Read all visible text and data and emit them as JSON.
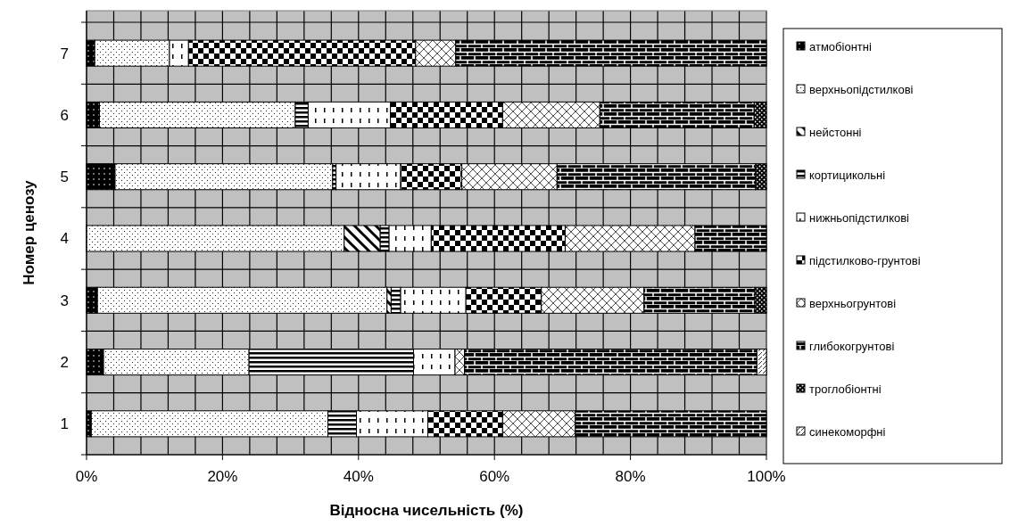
{
  "chart_data": {
    "type": "bar",
    "orientation": "horizontal",
    "stacked": true,
    "xlabel": "Відносна чисельність (%)",
    "ylabel": "Номер ценозу",
    "categories": [
      "7",
      "6",
      "5",
      "4",
      "3",
      "2",
      "1"
    ],
    "series": [
      {
        "name": "атмобіонтні",
        "color": "#000000",
        "values": [
          1.2,
          1.9,
          4.2,
          null,
          1.6,
          2.5,
          0.7
        ]
      },
      {
        "name": "верхньопідстилкові",
        "color": "#000000",
        "values": [
          11.0,
          28.8,
          32.0,
          37.9,
          42.6,
          21.4,
          34.8
        ]
      },
      {
        "name": "нейстонні",
        "color": "#000000",
        "values": [
          null,
          null,
          null,
          5.3,
          0.6,
          null,
          null
        ]
      },
      {
        "name": "кортицикольні",
        "color": "#000000",
        "values": [
          null,
          1.9,
          0.5,
          1.3,
          1.4,
          24.2,
          4.2
        ]
      },
      {
        "name": "нижньопідстилкові",
        "color": "#000000",
        "values": [
          2.8,
          12.1,
          9.5,
          6.2,
          9.6,
          6.1,
          10.5
        ]
      },
      {
        "name": "підстилково-грунтові",
        "color": "#000000",
        "values": [
          33.4,
          16.5,
          9.0,
          19.7,
          11.1,
          null,
          11.0
        ]
      },
      {
        "name": "верхньогрунтові",
        "color": "#000000",
        "values": [
          5.9,
          14.3,
          14.0,
          19.1,
          15.1,
          1.4,
          10.7
        ]
      },
      {
        "name": "глибокогрунтові",
        "color": "#000000",
        "values": [
          45.7,
          22.7,
          29.2,
          10.5,
          16.3,
          43.0,
          28.1
        ]
      },
      {
        "name": "троглобіонтні",
        "color": "#000000",
        "values": [
          null,
          1.8,
          1.6,
          null,
          1.7,
          null,
          null
        ]
      },
      {
        "name": "синекоморфні",
        "color": "#000000",
        "values": [
          null,
          null,
          null,
          null,
          null,
          1.4,
          null
        ]
      }
    ],
    "xlim": [
      0,
      100
    ],
    "xticks": [
      {
        "value": 0,
        "label": "0%"
      },
      {
        "value": 4,
        "label": null
      },
      {
        "value": 8,
        "label": null
      },
      {
        "value": 12,
        "label": null
      },
      {
        "value": 16,
        "label": null
      },
      {
        "value": 20,
        "label": "20%"
      },
      {
        "value": 24,
        "label": null
      },
      {
        "value": 28,
        "label": null
      },
      {
        "value": 32,
        "label": null
      },
      {
        "value": 36,
        "label": null
      },
      {
        "value": 40,
        "label": "40%"
      },
      {
        "value": 44,
        "label": null
      },
      {
        "value": 48,
        "label": null
      },
      {
        "value": 52,
        "label": null
      },
      {
        "value": 56,
        "label": null
      },
      {
        "value": 60,
        "label": "60%"
      },
      {
        "value": 64,
        "label": null
      },
      {
        "value": 68,
        "label": null
      },
      {
        "value": 72,
        "label": null
      },
      {
        "value": 76,
        "label": null
      },
      {
        "value": 80,
        "label": "80%"
      },
      {
        "value": 84,
        "label": null
      },
      {
        "value": 88,
        "label": null
      },
      {
        "value": 92,
        "label": null
      },
      {
        "value": 96,
        "label": null
      },
      {
        "value": 100,
        "label": "100%"
      }
    ],
    "grid": true,
    "legend": "right"
  }
}
